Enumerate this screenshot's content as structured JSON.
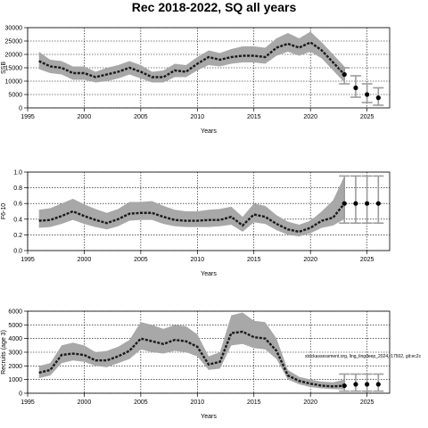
{
  "figure": {
    "title": "Rec 2018-2022, SQ all years",
    "annotation": "stockassessment.org, ling_lingdeep_2024,r17502, git:ec2c"
  },
  "chart_data": [
    {
      "type": "line",
      "title": "",
      "xlabel": "Years",
      "ylabel": "SSB",
      "xlim": [
        1995,
        2027
      ],
      "ylim": [
        0,
        30000
      ],
      "xticks": [
        1995,
        2000,
        2005,
        2010,
        2015,
        2020,
        2025
      ],
      "yticks": [
        0,
        5000,
        10000,
        15000,
        20000,
        25000,
        30000
      ],
      "grid": true,
      "years": [
        1996,
        1997,
        1998,
        1999,
        2000,
        2001,
        2002,
        2003,
        2004,
        2005,
        2006,
        2007,
        2008,
        2009,
        2010,
        2011,
        2012,
        2013,
        2014,
        2015,
        2016,
        2017,
        2018,
        2019,
        2020,
        2021,
        2022,
        2023
      ],
      "estimate": [
        17500,
        15500,
        15000,
        13000,
        13000,
        11500,
        12500,
        13500,
        15000,
        13500,
        11500,
        11500,
        14000,
        13500,
        16500,
        19000,
        18000,
        19000,
        19500,
        19500,
        19000,
        22500,
        24000,
        22500,
        24500,
        21500,
        17000,
        12500
      ],
      "lower": [
        14500,
        13000,
        12500,
        10500,
        10500,
        9500,
        10000,
        11000,
        12500,
        11000,
        9500,
        9500,
        11500,
        11500,
        14000,
        16000,
        15500,
        16500,
        17000,
        17000,
        16500,
        19500,
        21000,
        19500,
        21000,
        18500,
        14000,
        9500
      ],
      "upper": [
        21000,
        18000,
        17500,
        15500,
        15500,
        13500,
        15000,
        16000,
        17500,
        16000,
        13500,
        14000,
        16500,
        16000,
        19000,
        21500,
        20500,
        22000,
        23000,
        23000,
        22500,
        26000,
        28000,
        26000,
        28500,
        24500,
        20000,
        15500
      ],
      "forecast": {
        "years": [
          2023,
          2024,
          2025,
          2026
        ],
        "median": [
          12500,
          7500,
          5000,
          3800
        ],
        "lower": [
          9000,
          4000,
          2000,
          1000
        ],
        "upper": [
          15000,
          12000,
          9000,
          7500
        ]
      }
    },
    {
      "type": "line",
      "title": "",
      "xlabel": "Years",
      "ylabel": "F6-10",
      "xlim": [
        1995,
        2027
      ],
      "ylim": [
        0,
        1.0
      ],
      "xticks": [
        1995,
        2000,
        2005,
        2010,
        2015,
        2020,
        2025
      ],
      "yticks": [
        0.0,
        0.2,
        0.4,
        0.6,
        0.8,
        1.0
      ],
      "ytick_labels": [
        "0.0",
        "0.2",
        "0.4",
        "0.6",
        "0.8",
        "1.0"
      ],
      "grid": true,
      "years": [
        1996,
        1997,
        1998,
        1999,
        2000,
        2001,
        2002,
        2003,
        2004,
        2005,
        2006,
        2007,
        2008,
        2009,
        2010,
        2011,
        2012,
        2013,
        2014,
        2015,
        2016,
        2017,
        2018,
        2019,
        2020,
        2021,
        2022,
        2023
      ],
      "estimate": [
        0.38,
        0.39,
        0.44,
        0.5,
        0.44,
        0.39,
        0.35,
        0.4,
        0.47,
        0.48,
        0.48,
        0.43,
        0.39,
        0.38,
        0.38,
        0.39,
        0.39,
        0.43,
        0.32,
        0.46,
        0.43,
        0.34,
        0.27,
        0.24,
        0.29,
        0.38,
        0.42,
        0.6
      ],
      "lower": [
        0.29,
        0.3,
        0.34,
        0.39,
        0.34,
        0.3,
        0.27,
        0.31,
        0.38,
        0.39,
        0.39,
        0.34,
        0.31,
        0.3,
        0.3,
        0.3,
        0.31,
        0.33,
        0.24,
        0.36,
        0.34,
        0.26,
        0.2,
        0.18,
        0.22,
        0.29,
        0.32,
        0.4
      ],
      "upper": [
        0.52,
        0.54,
        0.6,
        0.66,
        0.59,
        0.53,
        0.48,
        0.53,
        0.62,
        0.62,
        0.63,
        0.57,
        0.52,
        0.5,
        0.5,
        0.52,
        0.53,
        0.56,
        0.43,
        0.6,
        0.57,
        0.45,
        0.37,
        0.33,
        0.38,
        0.5,
        0.64,
        0.95
      ],
      "forecast": {
        "years": [
          2023,
          2024,
          2025,
          2026
        ],
        "median": [
          0.6,
          0.6,
          0.6,
          0.6
        ],
        "lower": [
          0.35,
          0.35,
          0.35,
          0.35
        ],
        "upper": [
          0.95,
          0.95,
          0.95,
          0.95
        ]
      }
    },
    {
      "type": "line",
      "title": "",
      "xlabel": "Years",
      "ylabel": "Recruits (age 3)",
      "xlim": [
        1995,
        2027
      ],
      "ylim": [
        0,
        6000
      ],
      "xticks": [
        1995,
        2000,
        2005,
        2010,
        2015,
        2020,
        2025
      ],
      "yticks": [
        0,
        1000,
        2000,
        3000,
        4000,
        5000,
        6000
      ],
      "grid": true,
      "years": [
        1996,
        1997,
        1998,
        1999,
        2000,
        2001,
        2002,
        2003,
        2004,
        2005,
        2006,
        2007,
        2008,
        2009,
        2010,
        2011,
        2012,
        2013,
        2014,
        2015,
        2016,
        2017,
        2018,
        2019,
        2020,
        2021,
        2022,
        2023
      ],
      "estimate": [
        1500,
        1700,
        2800,
        2900,
        2800,
        2400,
        2400,
        2700,
        3100,
        4000,
        3800,
        3600,
        3900,
        3800,
        3400,
        2100,
        2300,
        4400,
        4500,
        4100,
        4000,
        3100,
        1300,
        900,
        700,
        550,
        500,
        550
      ],
      "lower": [
        1100,
        1300,
        2200,
        2400,
        2300,
        2000,
        1900,
        2200,
        2500,
        3200,
        3000,
        2900,
        3100,
        3000,
        2700,
        1700,
        1800,
        3500,
        3600,
        3300,
        3200,
        2500,
        1000,
        650,
        450,
        350,
        300,
        280
      ],
      "upper": [
        2000,
        2200,
        3500,
        3700,
        3500,
        3000,
        3100,
        3400,
        3900,
        5200,
        5000,
        4700,
        5000,
        4900,
        4300,
        2700,
        3000,
        5700,
        5900,
        5300,
        5200,
        4000,
        1700,
        1200,
        1000,
        850,
        800,
        1000
      ],
      "forecast": {
        "years": [
          2023,
          2024,
          2025,
          2026
        ],
        "median": [
          550,
          650,
          650,
          650
        ],
        "lower": [
          150,
          150,
          150,
          150
        ],
        "upper": [
          1400,
          1400,
          1400,
          1400
        ]
      }
    }
  ]
}
